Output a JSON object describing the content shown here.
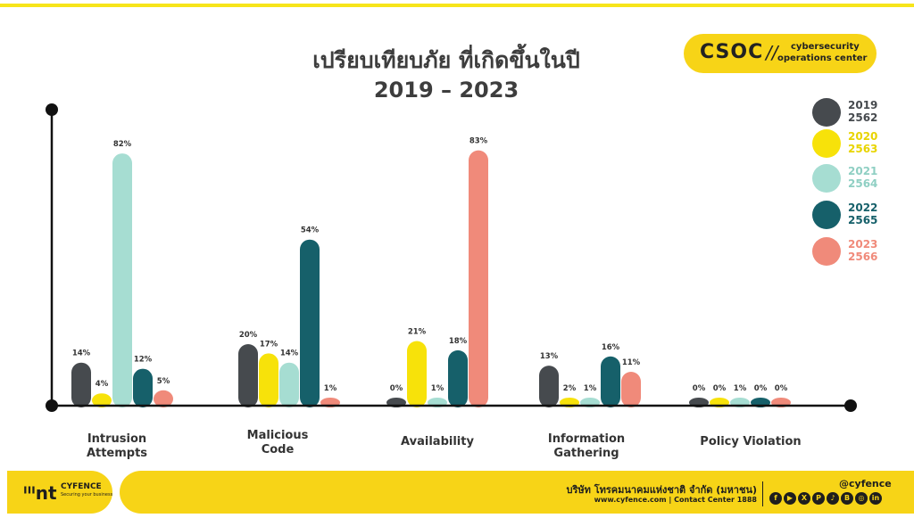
{
  "title": {
    "line1": "เปรียบเทียบภัย ที่เกิดขึ้นในปี",
    "line2": "2019 – 2023"
  },
  "badge": {
    "main": "CSOC",
    "slash": "//",
    "sub1": "cybersecurity",
    "sub2": "operations center"
  },
  "legend": [
    {
      "line1": "2019",
      "line2": "2562",
      "color": "#464a4e"
    },
    {
      "line1": "2020",
      "line2": "2563",
      "color": "#f7e20a"
    },
    {
      "line1": "2021",
      "line2": "2564",
      "color": "#a6ddd2"
    },
    {
      "line1": "2022",
      "line2": "2565",
      "color": "#16606a"
    },
    {
      "line1": "2023",
      "line2": "2566",
      "color": "#f08a7a"
    }
  ],
  "chart_data": {
    "type": "bar",
    "categories": [
      "Intrusion\nAttempts",
      "Malicious\nCode",
      "Availability",
      "Information\nGathering",
      "Policy Violation"
    ],
    "series": [
      {
        "name": "2019",
        "values": [
          14,
          20,
          0,
          13,
          0
        ],
        "labels": [
          "14%",
          "20%",
          "0%",
          "13%",
          "0%"
        ]
      },
      {
        "name": "2020",
        "values": [
          4,
          17,
          21,
          2,
          0
        ],
        "labels": [
          "4%",
          "17%",
          "21%",
          "2%",
          "0%"
        ]
      },
      {
        "name": "2021",
        "values": [
          82,
          14,
          1,
          1,
          1
        ],
        "labels": [
          "82%",
          "14%",
          "1%",
          "1%",
          "1%"
        ]
      },
      {
        "name": "2022",
        "values": [
          12,
          54,
          18,
          16,
          0
        ],
        "labels": [
          "12%",
          "54%",
          "18%",
          "16%",
          "0%"
        ]
      },
      {
        "name": "2023",
        "values": [
          5,
          1,
          83,
          11,
          0
        ],
        "labels": [
          "5%",
          "1%",
          "83%",
          "11%",
          "0%"
        ]
      }
    ],
    "ylim": [
      0,
      100
    ],
    "grid": false,
    "legend_position": "right"
  },
  "footer": {
    "brand": "ᑊᑊᑊnt",
    "brand_name": "CYFENCE",
    "brand_tag": "Securing your business",
    "company": "บริษัท โทรคมนาคมแห่งชาติ จำกัด (มหาชน)",
    "contact": "www.cyfence.com | Contact Center 1888",
    "handle": "@cyfence",
    "social": [
      "f",
      "▶",
      "X",
      "P",
      "♪",
      "B",
      "◎",
      "in"
    ]
  }
}
